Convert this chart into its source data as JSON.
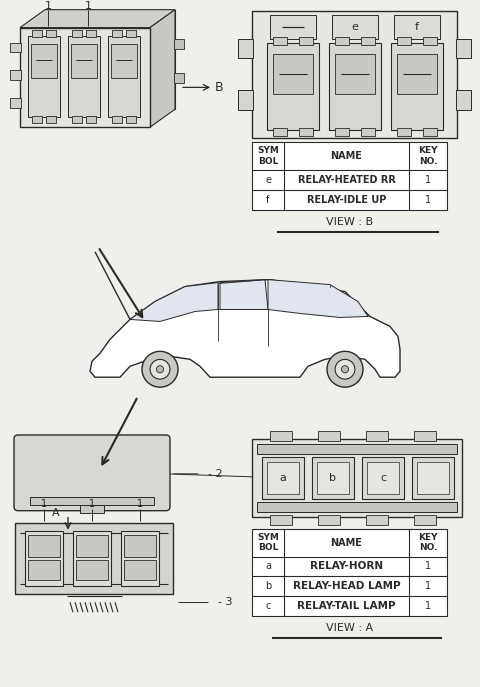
{
  "bg_color": "#f0f0eb",
  "line_color": "#2a2a2a",
  "view_b_table": {
    "headers": [
      "SYM\nBOL",
      "NAME",
      "KEY\nNO."
    ],
    "rows": [
      [
        "e",
        "RELAY-HEATED RR",
        "1"
      ],
      [
        "f",
        "RELAY-IDLE UP",
        "1"
      ]
    ],
    "caption": "VIEW : B"
  },
  "view_a_table": {
    "headers": [
      "SYM\nBOL",
      "NAME",
      "KEY\nNO."
    ],
    "rows": [
      [
        "a",
        "RELAY-HORN",
        "1"
      ],
      [
        "b",
        "RELAY-HEAD LAMP",
        "1"
      ],
      [
        "c",
        "RELAY-TAIL LAMP",
        "1"
      ]
    ],
    "caption": "VIEW : A"
  }
}
